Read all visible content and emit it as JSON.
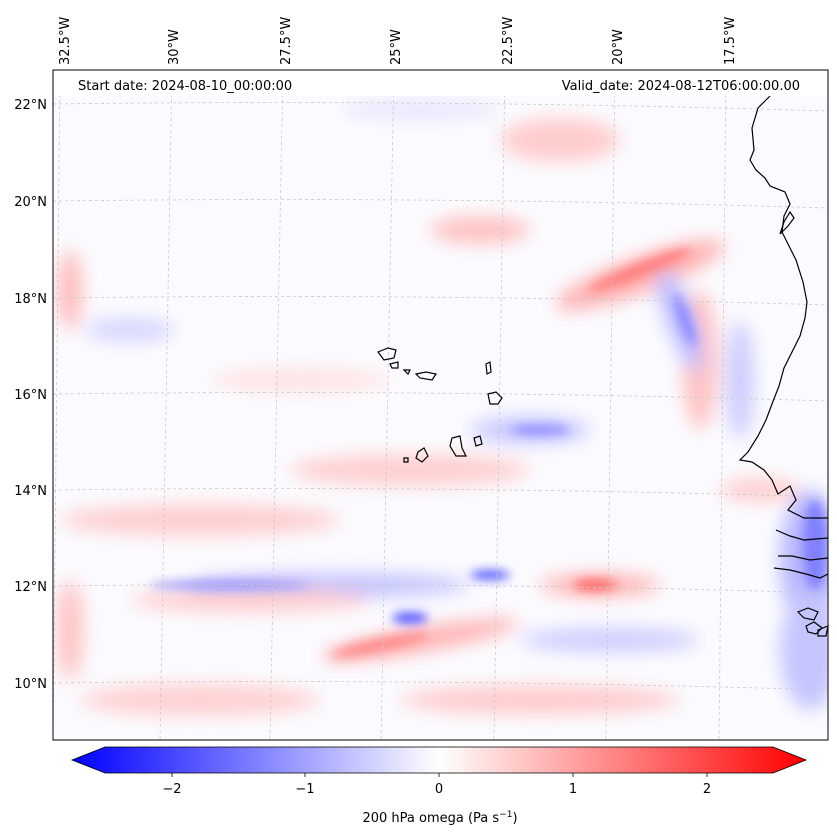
{
  "header": {
    "start_label": "Start date: 2024-08-10_00:00:00",
    "valid_label": "Valid_date: 2024-08-12T06:00:00.00"
  },
  "map": {
    "longitude_labels": [
      "32.5°W",
      "30°W",
      "27.5°W",
      "25°W",
      "22.5°W",
      "20°W",
      "17.5°W"
    ],
    "latitude_labels": [
      "22°N",
      "20°N",
      "18°N",
      "16°N",
      "14°N",
      "12°N",
      "10°N"
    ],
    "gridlines": "dashed"
  },
  "colorbar": {
    "ticks": [
      "−2",
      "−1",
      "0",
      "1",
      "2"
    ],
    "label_main": "200 hPa omega (Pa s",
    "label_exp": "−1",
    "label_close": ")",
    "colors": {
      "negative": "#0000ff",
      "neutral": "#ffffff",
      "positive": "#ff0000"
    }
  }
}
